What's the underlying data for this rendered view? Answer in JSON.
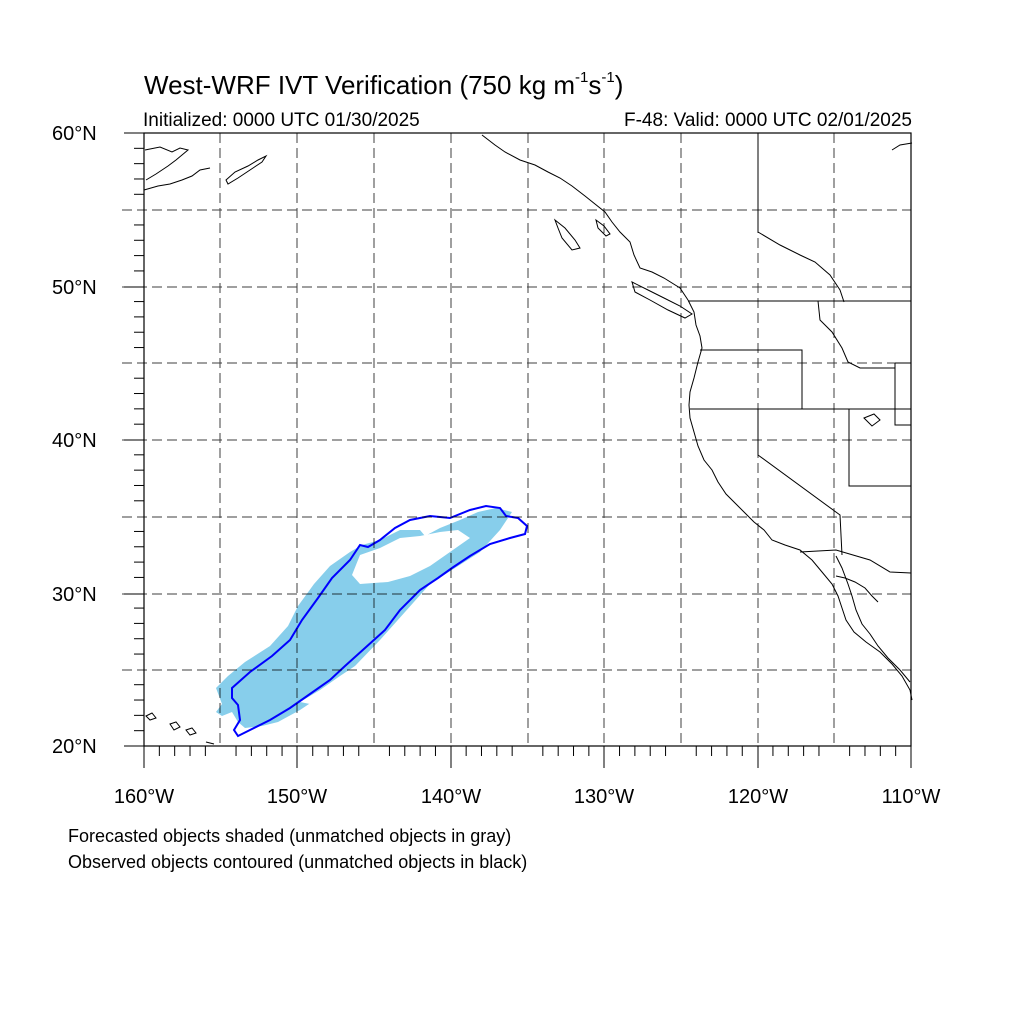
{
  "title": {
    "main": "West-WRF IVT Verification (750 kg m",
    "exp1": "-1",
    "mid": "s",
    "exp2": "-1",
    "end": ")"
  },
  "subtitle_left": "Initialized: 0000 UTC 01/30/2025",
  "subtitle_right": "F-48: Valid: 0000 UTC 02/01/2025",
  "lat_labels": [
    "60°N",
    "50°N",
    "40°N",
    "30°N",
    "20°N"
  ],
  "lon_labels": [
    "160°W",
    "150°W",
    "140°W",
    "130°W",
    "120°W",
    "110°W"
  ],
  "footnotes": [
    "Forecasted objects shaded (unmatched objects in gray)",
    "Observed objects contoured (unmatched objects in black)"
  ],
  "colors": {
    "forecast_fill": "#87CEEB",
    "observed_contour": "#0000FF",
    "coastline": "#000000",
    "grid": "#000000"
  },
  "map": {
    "projection": "cylindrical-equidistant",
    "lon_range": [
      -160,
      -110
    ],
    "lat_range": [
      20,
      60
    ],
    "grid": "dashed, every 5 degrees"
  }
}
